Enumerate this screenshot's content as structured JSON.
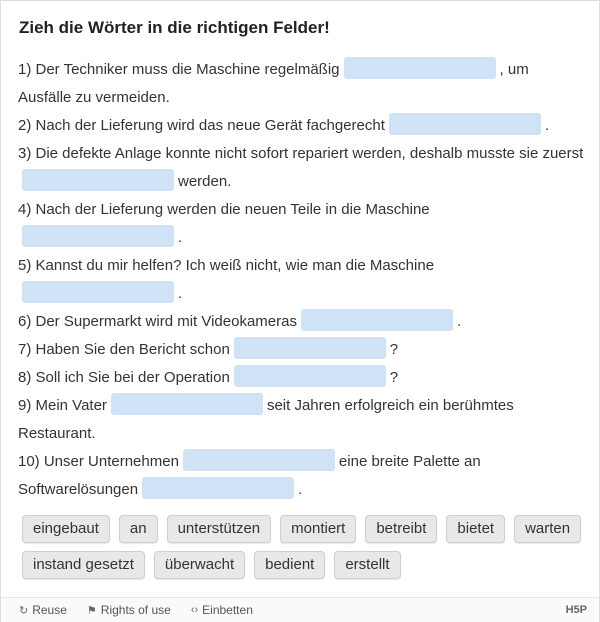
{
  "title": "Zieh die Wörter in die richtigen Felder!",
  "sentences": [
    {
      "parts": [
        "1) Der Techniker muss die Maschine regelmäßig",
        ", um Ausfälle zu vermeiden."
      ]
    },
    {
      "parts": [
        "2) Nach der Lieferung wird das neue Gerät fachgerecht",
        "."
      ]
    },
    {
      "parts": [
        "3) Die defekte Anlage konnte nicht sofort repariert werden, deshalb musste sie zuerst",
        "werden."
      ]
    },
    {
      "parts": [
        "4) Nach der Lieferung werden die neuen Teile in die Maschine",
        "."
      ]
    },
    {
      "parts": [
        "5) Kannst du mir helfen? Ich weiß nicht, wie man die Maschine",
        "."
      ]
    },
    {
      "parts": [
        "6) Der Supermarkt wird mit Videokameras",
        "."
      ]
    },
    {
      "parts": [
        "7) Haben Sie den Bericht schon",
        "?"
      ]
    },
    {
      "parts": [
        "8) Soll ich Sie bei der Operation",
        "?"
      ]
    },
    {
      "parts": [
        "9) Mein Vater",
        "seit Jahren erfolgreich ein berühmtes Restaurant."
      ]
    },
    {
      "parts": [
        "10) Unser Unternehmen",
        "eine breite Palette an Softwarelösungen",
        "."
      ]
    }
  ],
  "words": [
    "eingebaut",
    "an",
    "unterstützen",
    "montiert",
    "betreibt",
    "bietet",
    "warten",
    "instand gesetzt",
    "überwacht",
    "bedient",
    "erstellt"
  ],
  "footer": {
    "links": [
      "Reuse",
      "Rights of use",
      "Einbetten"
    ],
    "logo": "H5P"
  }
}
